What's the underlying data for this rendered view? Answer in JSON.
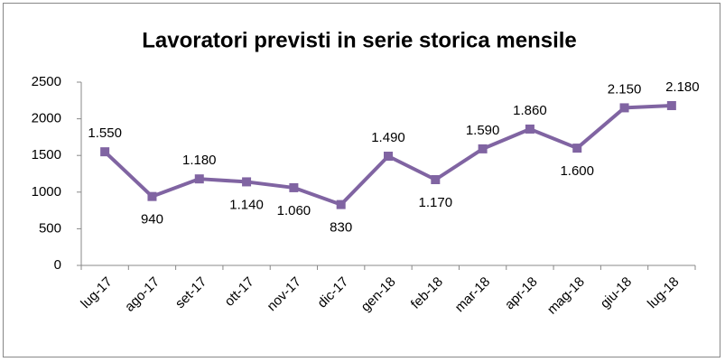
{
  "chart_data": {
    "type": "line",
    "title": "Lavoratori previsti in serie storica mensile",
    "categories": [
      "lug-17",
      "ago-17",
      "set-17",
      "ott-17",
      "nov-17",
      "dic-17",
      "gen-18",
      "feb-18",
      "mar-18",
      "apr-18",
      "mag-18",
      "giu-18",
      "lug-18"
    ],
    "values": [
      1550,
      940,
      1180,
      1140,
      1060,
      830,
      1490,
      1170,
      1590,
      1860,
      1600,
      2150,
      2180
    ],
    "value_labels": [
      "1.550",
      "940",
      "1.180",
      "1.140",
      "1.060",
      "830",
      "1.490",
      "1.170",
      "1.590",
      "1.860",
      "1.600",
      "2.150",
      "2.180"
    ],
    "color": "#8064a2",
    "ylim": [
      0,
      2500
    ],
    "yticks": [
      0,
      500,
      1000,
      1500,
      2000,
      2500
    ],
    "grid": false
  }
}
